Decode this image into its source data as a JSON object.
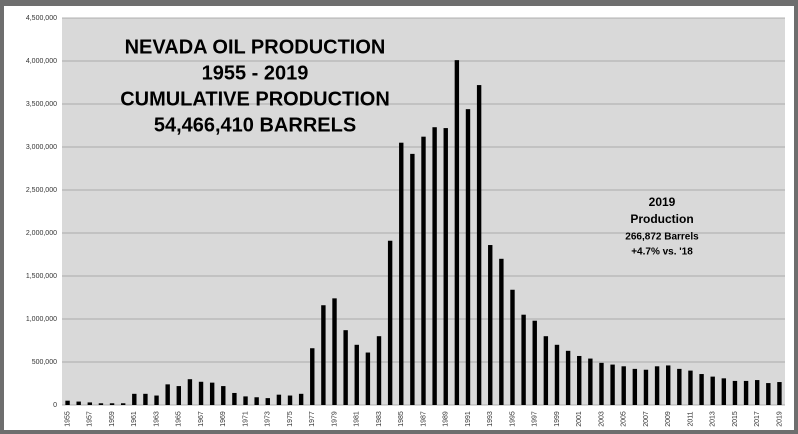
{
  "chart_data": {
    "type": "bar",
    "title": [
      "NEVADA OIL PRODUCTION",
      "1955 - 2019",
      "CUMULATIVE PRODUCTION",
      "54,466,410 BARRELS"
    ],
    "annotation": [
      "2019",
      "Production",
      "266,872 Barrels",
      "+4.7% vs. '18"
    ],
    "categories": [
      "1955",
      null,
      "1957",
      null,
      "1959",
      null,
      "1961",
      null,
      "1963",
      null,
      "1965",
      null,
      "1967",
      null,
      "1969",
      null,
      "1971",
      null,
      "1973",
      null,
      "1975",
      null,
      "1977",
      null,
      "1979",
      null,
      "1981",
      null,
      "1983",
      null,
      "1985",
      null,
      "1987",
      null,
      "1989",
      null,
      "1991",
      null,
      "1993",
      null,
      "1995",
      null,
      "1997",
      null,
      "1999",
      null,
      "2001",
      null,
      "2003",
      null,
      "2005",
      null,
      "2007",
      null,
      "2009",
      null,
      "2011",
      null,
      "2013",
      null,
      "2015",
      null,
      "2017",
      null,
      "2019"
    ],
    "values": [
      50000,
      40000,
      30000,
      20000,
      20000,
      20000,
      130000,
      130000,
      110000,
      240000,
      220000,
      300000,
      270000,
      260000,
      220000,
      140000,
      100000,
      90000,
      80000,
      120000,
      110000,
      130000,
      660000,
      1160000,
      1240000,
      870000,
      700000,
      610000,
      800000,
      1910000,
      3050000,
      2920000,
      3120000,
      3230000,
      3220000,
      4010000,
      3440000,
      3720000,
      1860000,
      1700000,
      1340000,
      1050000,
      980000,
      800000,
      700000,
      630000,
      570000,
      540000,
      490000,
      470000,
      450000,
      420000,
      410000,
      450000,
      460000,
      420000,
      400000,
      360000,
      330000,
      310000,
      280000,
      280000,
      290000,
      255000,
      266872
    ],
    "color": "#000000",
    "ylim": [
      0,
      4500000
    ],
    "yticks": [
      0,
      {
        "value": 500000,
        "label": "500,000"
      },
      {
        "value": 1000000,
        "label": "1,000,000"
      },
      {
        "value": 1500000,
        "label": "1,500,000"
      },
      {
        "value": 2000000,
        "label": "2,000,000"
      },
      {
        "value": 2500000,
        "label": "2,500,000"
      },
      {
        "value": 3000000,
        "label": "3,000,000"
      },
      {
        "value": 3500000,
        "label": "3,500,000"
      },
      {
        "value": 4000000,
        "label": "4,000,000"
      },
      {
        "value": 4500000,
        "label": "4,500,000"
      }
    ],
    "grid": true
  }
}
